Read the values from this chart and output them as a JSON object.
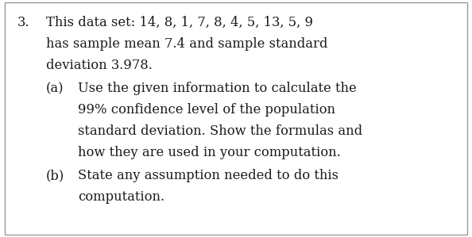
{
  "background_color": "#ffffff",
  "border_color": "#999999",
  "text_color": "#1a1a1a",
  "number": "3.",
  "line1": "This data set: 14, 8, 1, 7, 8, 4, 5, 13, 5, 9",
  "line2": "has sample mean 7.4 and sample standard",
  "line3": "deviation 3.978.",
  "part_a_label": "(a)",
  "part_a_line1": "Use the given information to calculate the",
  "part_a_line2": "99% confidence level of the population",
  "part_a_line3": "standard deviation. Show the formulas and",
  "part_a_line4": "how they are used in your computation.",
  "part_b_label": "(b)",
  "part_b_line1": "State any assumption needed to do this",
  "part_b_line2": "computation.",
  "font_size": 11.8,
  "fig_width": 5.94,
  "fig_height": 2.99,
  "dpi": 100
}
